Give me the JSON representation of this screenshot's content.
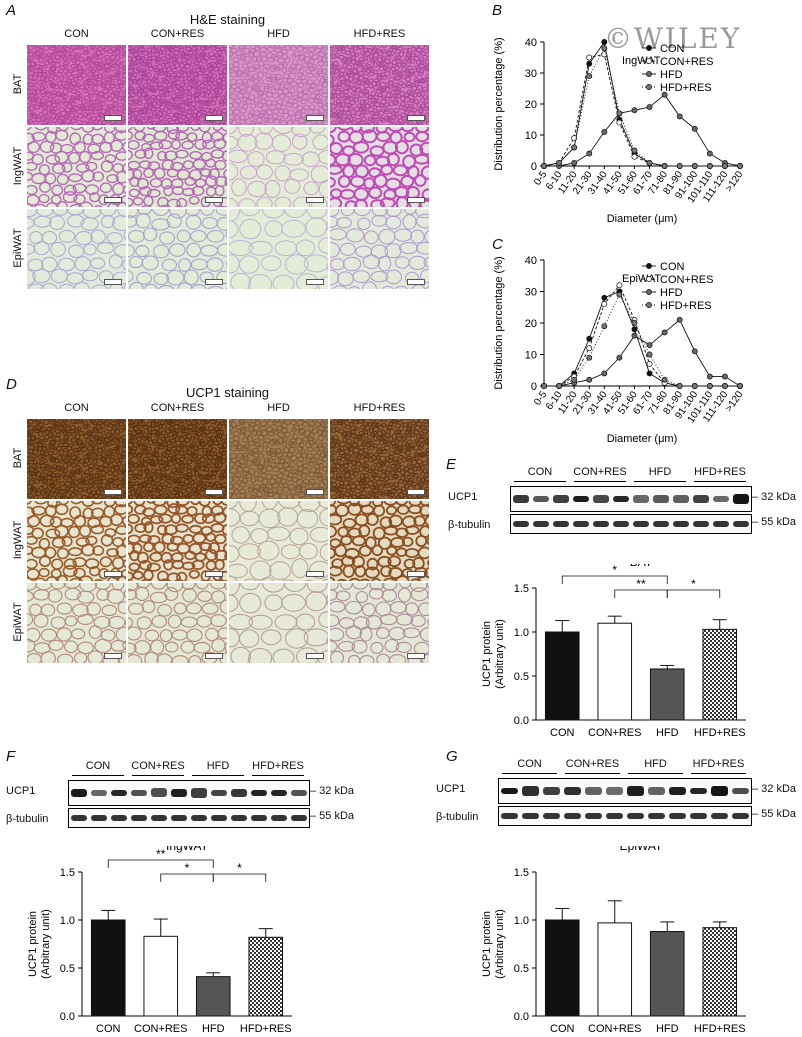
{
  "watermark": "©WILEY",
  "panelA": {
    "label": "A",
    "title": "H&E staining",
    "columns": [
      "CON",
      "CON+RES",
      "HFD",
      "HFD+RES"
    ],
    "rows": [
      "BAT",
      "IngWAT",
      "EpiWAT"
    ]
  },
  "panelD": {
    "label": "D",
    "title": "UCP1 staining",
    "columns": [
      "CON",
      "CON+RES",
      "HFD",
      "HFD+RES"
    ],
    "rows": [
      "BAT",
      "IngWAT",
      "EpiWAT"
    ]
  },
  "panelE": {
    "label": "E",
    "groups": [
      "CON",
      "CON+RES",
      "HFD",
      "HFD+RES"
    ],
    "rows": [
      "UCP1",
      "β-tubulin"
    ],
    "markers": [
      "32 kDa",
      "55 kDa"
    ]
  },
  "panelF": {
    "label": "F",
    "groups": [
      "CON",
      "CON+RES",
      "HFD",
      "HFD+RES"
    ],
    "rows": [
      "UCP1",
      "β-tubulin"
    ],
    "markers": [
      "32 kDa",
      "55 kDa"
    ]
  },
  "panelG": {
    "label": "G",
    "groups": [
      "CON",
      "CON+RES",
      "HFD",
      "HFD+RES"
    ],
    "rows": [
      "UCP1",
      "β-tubulin"
    ],
    "markers": [
      "32 kDa",
      "55 kDa"
    ]
  },
  "chart_data": [
    {
      "id": "B",
      "label": "B",
      "type": "line",
      "title": "IngWAT",
      "xlabel": "Diameter (μm)",
      "ylabel": "Distribution percentage (%)",
      "categories": [
        "0-5",
        "6-10",
        "11-20",
        "21-30",
        "31-40",
        "41-50",
        "51-60",
        "61-70",
        "71-80",
        "81-90",
        "91-100",
        "101-110",
        "111-120",
        ">120"
      ],
      "ylim": [
        0,
        40
      ],
      "yticks": [
        0,
        10,
        20,
        30,
        40
      ],
      "legend": "top-right",
      "series": [
        {
          "name": "CON",
          "values": [
            0,
            1,
            6,
            33,
            40,
            15,
            4,
            1,
            0,
            0,
            0,
            0,
            0,
            0
          ],
          "marker": "filled",
          "dash": ""
        },
        {
          "name": "CON+RES",
          "values": [
            0,
            1,
            9,
            35,
            36,
            14,
            3,
            1,
            0,
            0,
            0,
            0,
            0,
            0
          ],
          "marker": "open",
          "dash": "3,2"
        },
        {
          "name": "HFD",
          "values": [
            0,
            0,
            1,
            4,
            11,
            17,
            18,
            19,
            23,
            16,
            12,
            4,
            1,
            0
          ],
          "marker": "gray",
          "dash": ""
        },
        {
          "name": "HFD+RES",
          "values": [
            0,
            1,
            6,
            29,
            38,
            17,
            5,
            1,
            0,
            0,
            0,
            0,
            0,
            0
          ],
          "marker": "star",
          "dash": "1,2"
        }
      ]
    },
    {
      "id": "C",
      "label": "C",
      "type": "line",
      "title": "EpiWAT",
      "xlabel": "Diameter (μm)",
      "ylabel": "Distribution percentage (%)",
      "categories": [
        "0-5",
        "6-10",
        "11-20",
        "21-30",
        "31-40",
        "41-50",
        "51-60",
        "61-70",
        "71-80",
        "81-90",
        "91-100",
        "101-110",
        "111-120",
        ">120"
      ],
      "ylim": [
        0,
        40
      ],
      "yticks": [
        0,
        10,
        20,
        30,
        40
      ],
      "legend": "top-right",
      "series": [
        {
          "name": "CON",
          "values": [
            0,
            0,
            4,
            15,
            28,
            30,
            18,
            4,
            1,
            0,
            0,
            0,
            0,
            0
          ],
          "marker": "filled",
          "dash": ""
        },
        {
          "name": "CON+RES",
          "values": [
            0,
            0,
            3,
            12,
            26,
            32,
            21,
            7,
            1,
            0,
            0,
            0,
            0,
            0
          ],
          "marker": "open",
          "dash": "3,2"
        },
        {
          "name": "HFD",
          "values": [
            0,
            0,
            1,
            2,
            4,
            9,
            16,
            13,
            17,
            21,
            11,
            3,
            3,
            0
          ],
          "marker": "gray",
          "dash": ""
        },
        {
          "name": "HFD+RES",
          "values": [
            0,
            0,
            2,
            9,
            19,
            29,
            20,
            10,
            2,
            0,
            0,
            0,
            0,
            0
          ],
          "marker": "star",
          "dash": "1,2"
        }
      ]
    },
    {
      "id": "E",
      "type": "bar",
      "title": "BAT",
      "ylabel": "UCP1 protein (Arbitrary unit)",
      "categories": [
        "CON",
        "CON+RES",
        "HFD",
        "HFD+RES"
      ],
      "values": [
        1.0,
        1.1,
        0.58,
        1.03
      ],
      "errors": [
        0.13,
        0.08,
        0.04,
        0.11
      ],
      "fills": [
        "black",
        "white",
        "gray",
        "check"
      ],
      "ylim": [
        0,
        1.5
      ],
      "yticks": [
        0.0,
        0.5,
        1.0,
        1.5
      ],
      "sig": [
        {
          "from": 0,
          "to": 2,
          "label": "*",
          "level": 2
        },
        {
          "from": 1,
          "to": 2,
          "label": "**",
          "level": 1
        },
        {
          "from": 2,
          "to": 3,
          "label": "*",
          "level": 1
        }
      ]
    },
    {
      "id": "F",
      "type": "bar",
      "title": "IngWAT",
      "ylabel": "UCP1 protein (Arbitrary unit)",
      "categories": [
        "CON",
        "CON+RES",
        "HFD",
        "HFD+RES"
      ],
      "values": [
        1.0,
        0.83,
        0.41,
        0.82
      ],
      "errors": [
        0.1,
        0.18,
        0.04,
        0.09
      ],
      "fills": [
        "black",
        "white",
        "gray",
        "check"
      ],
      "ylim": [
        0,
        1.5
      ],
      "yticks": [
        0.0,
        0.5,
        1.0,
        1.5
      ],
      "sig": [
        {
          "from": 0,
          "to": 2,
          "label": "**",
          "level": 2
        },
        {
          "from": 1,
          "to": 2,
          "label": "*",
          "level": 1
        },
        {
          "from": 2,
          "to": 3,
          "label": "*",
          "level": 1
        }
      ]
    },
    {
      "id": "G",
      "type": "bar",
      "title": "EpiWAT",
      "ylabel": "UCP1 protein (Arbitrary unit)",
      "categories": [
        "CON",
        "CON+RES",
        "HFD",
        "HFD+RES"
      ],
      "values": [
        1.0,
        0.97,
        0.88,
        0.92
      ],
      "errors": [
        0.12,
        0.23,
        0.1,
        0.06
      ],
      "fills": [
        "black",
        "white",
        "gray",
        "check"
      ],
      "ylim": [
        0,
        1.5
      ],
      "yticks": [
        0.0,
        0.5,
        1.0,
        1.5
      ],
      "sig": []
    }
  ]
}
